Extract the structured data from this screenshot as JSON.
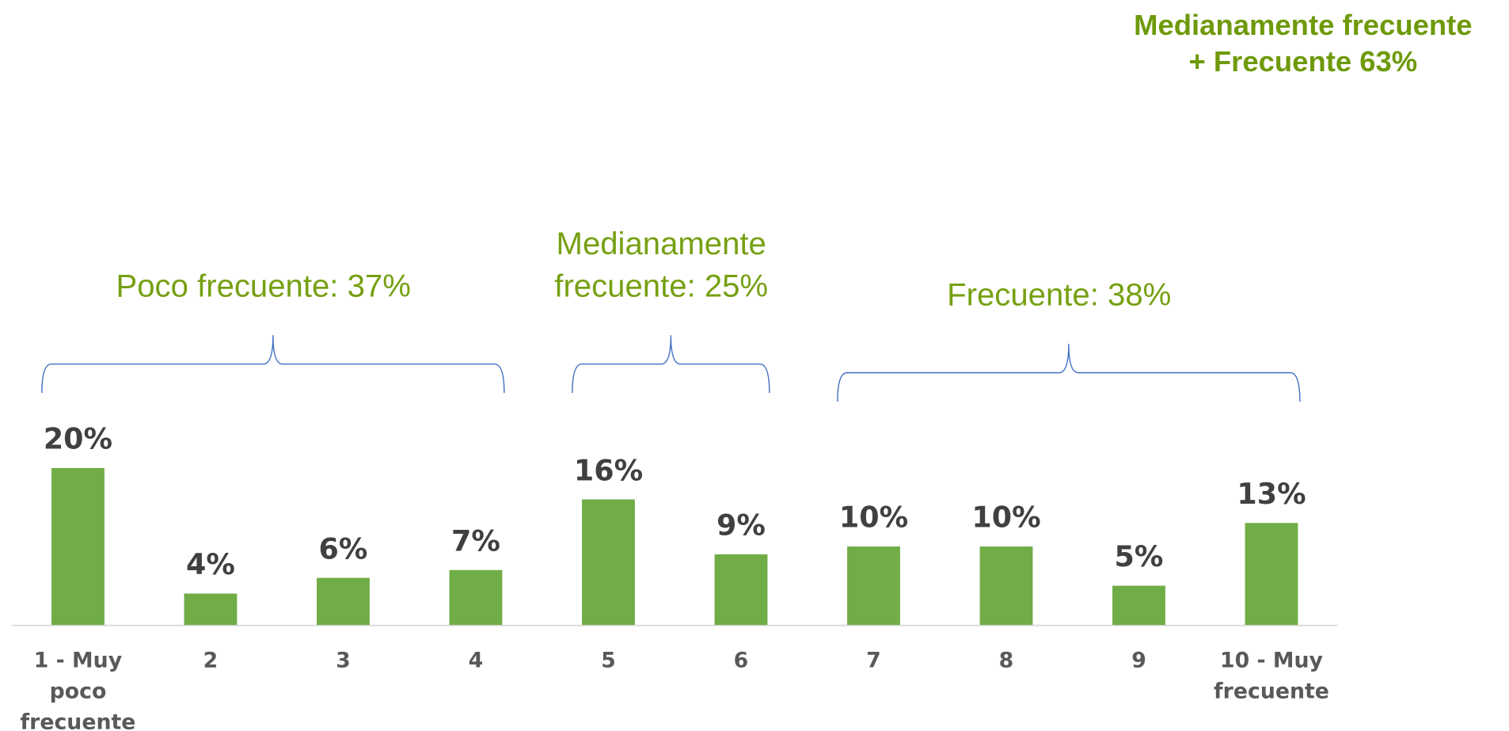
{
  "chart_data": {
    "type": "bar",
    "categories": [
      "1 - Muy poco frecuente",
      "2",
      "3",
      "4",
      "5",
      "6",
      "7",
      "8",
      "9",
      "10 - Muy frecuente"
    ],
    "values": [
      20,
      4,
      6,
      7,
      16,
      9,
      10,
      10,
      5,
      13
    ],
    "value_labels": [
      "20%",
      "4%",
      "6%",
      "7%",
      "16%",
      "9%",
      "10%",
      "10%",
      "5%",
      "13%"
    ],
    "color": "#70ad47",
    "groups": [
      {
        "label": "Poco frecuente: 37%",
        "first": 0,
        "last": 3
      },
      {
        "label": "Medianamente frecuente: 25%",
        "first": 4,
        "last": 5
      },
      {
        "label": "Frecuente: 38%",
        "first": 6,
        "last": 9
      }
    ],
    "annotation": "Medianamente frecuente + Frecuente 63%"
  }
}
